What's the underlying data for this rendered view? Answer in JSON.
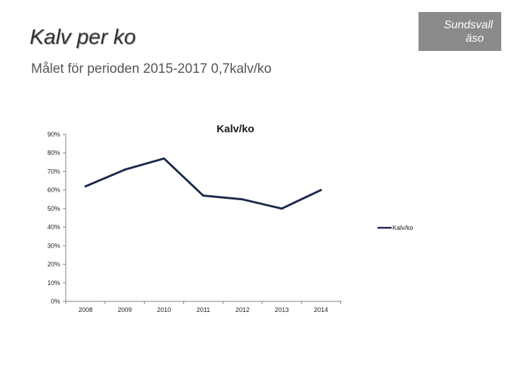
{
  "slide": {
    "title": "Kalv per ko",
    "subtitle": "Målet för perioden 2015-2017 0,7kalv/ko",
    "logo_line1": "Sundsvall",
    "logo_line2": "äso"
  },
  "colors": {
    "series": "#1b2a4a",
    "logo_bg": "#8a8a8a"
  },
  "chart_data": {
    "type": "line",
    "title": "Kalv/ko",
    "xlabel": "",
    "ylabel": "",
    "x": [
      "2008",
      "2009",
      "2010",
      "2011",
      "2012",
      "2013",
      "2014"
    ],
    "series": [
      {
        "name": "Kalv/ko",
        "values": [
          0.62,
          0.71,
          0.77,
          0.57,
          0.55,
          0.5,
          0.6
        ]
      }
    ],
    "ylim": [
      0,
      0.9
    ],
    "yticks": [
      0,
      0.1,
      0.2,
      0.3,
      0.4,
      0.5,
      0.6,
      0.7,
      0.8,
      0.9
    ],
    "ytick_labels": [
      "0%",
      "10%",
      "20%",
      "30%",
      "40%",
      "50%",
      "60%",
      "70%",
      "80%",
      "90%"
    ],
    "grid": false,
    "legend": "right"
  }
}
